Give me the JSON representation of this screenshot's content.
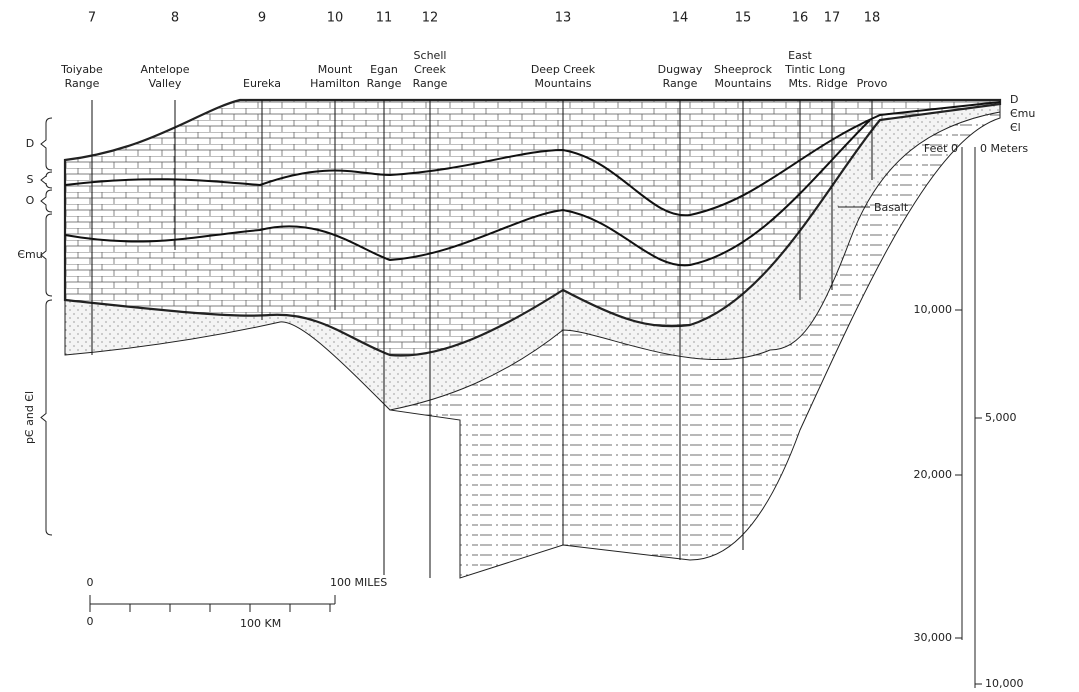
{
  "locations": [
    {
      "number": "7",
      "name": [
        "Toiyabe",
        "Range"
      ]
    },
    {
      "number": "8",
      "name": [
        "Antelope",
        "Valley"
      ]
    },
    {
      "number": "9",
      "name": [
        "Eureka"
      ]
    },
    {
      "number": "10",
      "name": [
        "Mount",
        "Hamilton"
      ]
    },
    {
      "number": "11",
      "name": [
        "Egan",
        "Range"
      ]
    },
    {
      "number": "12",
      "name": [
        "Schell",
        "Creek",
        "Range"
      ]
    },
    {
      "number": "13",
      "name": [
        "Deep Creek",
        "Mountains"
      ]
    },
    {
      "number": "14",
      "name": [
        "Dugway",
        "Range"
      ]
    },
    {
      "number": "15",
      "name": [
        "Sheeprock",
        "Mountains"
      ]
    },
    {
      "number": "16",
      "name": [
        "East",
        "Tintic",
        "Mts."
      ]
    },
    {
      "number": "17",
      "name": [
        "Long",
        "Ridge"
      ]
    },
    {
      "number": "18",
      "name": [
        "Provo"
      ]
    }
  ],
  "left_units": [
    "D",
    "S",
    "O",
    "Єmu",
    "pЄ and Єl"
  ],
  "right_units": [
    "D",
    "Єmu",
    "Єl"
  ],
  "basalt": "Basalt",
  "depth_scale": {
    "feet_label": "Feet 0",
    "meters_label": "0 Meters",
    "feet_ticks": [
      "10,000",
      "20,000",
      "30,000"
    ],
    "meters_ticks": [
      "5,000",
      "10,000"
    ]
  },
  "map_scale": {
    "miles_zero": "0",
    "miles_label": "100 MILES",
    "km_zero": "0",
    "km_label": "100 KM"
  }
}
